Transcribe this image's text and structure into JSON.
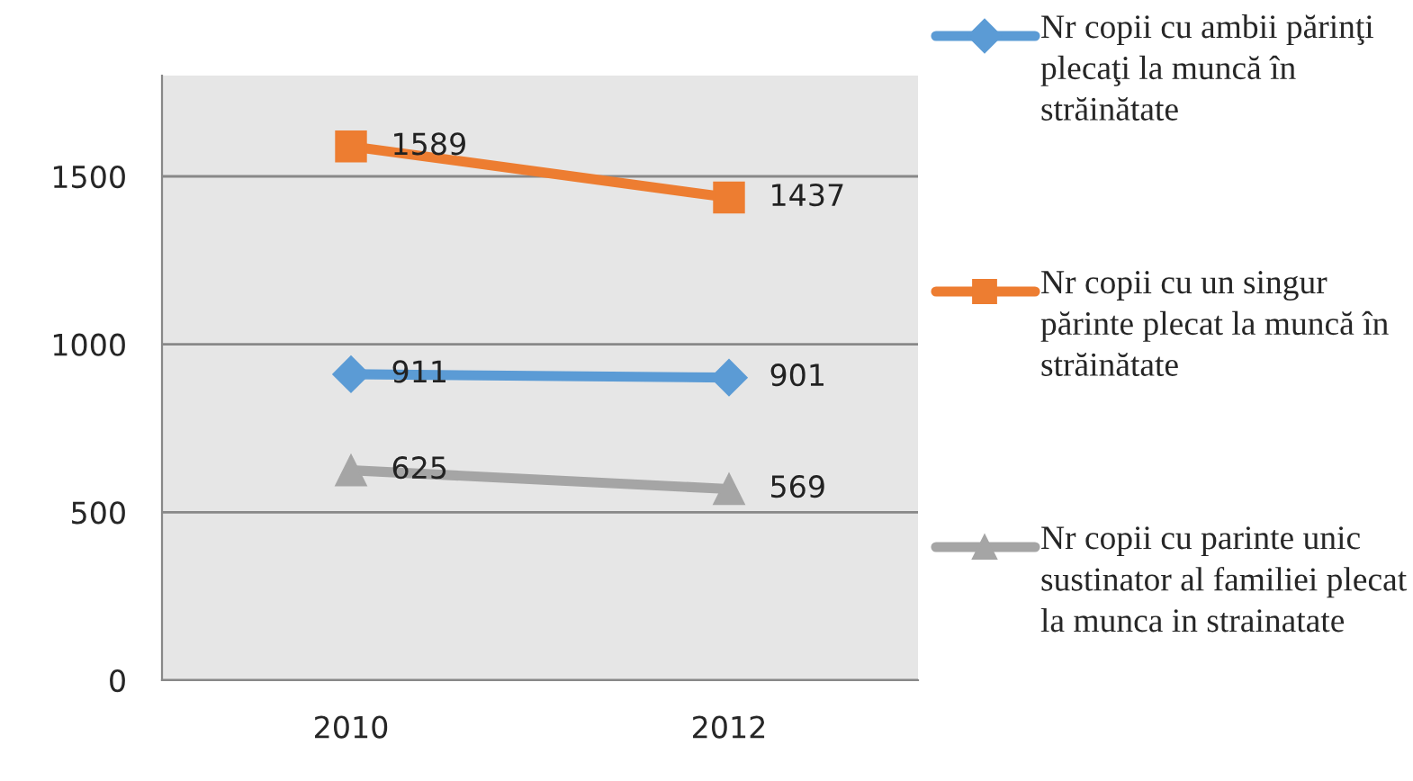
{
  "chart_data": {
    "type": "line",
    "categories": [
      "2010",
      "2012"
    ],
    "series": [
      {
        "name": "Nr copii cu ambii părinţi plecaţi la muncă în străinătate",
        "color": "#5b9bd5",
        "marker": "diamond",
        "values": [
          911,
          901
        ]
      },
      {
        "name": "Nr copii cu un singur părinte plecat la muncă în străinătate",
        "color": "#ed7d31",
        "marker": "square",
        "values": [
          1589,
          1437
        ]
      },
      {
        "name": "Nr copii cu parinte unic sustinator al familiei plecat la munca in strainatate",
        "color": "#a5a5a5",
        "marker": "triangle",
        "values": [
          625,
          569
        ]
      }
    ],
    "ylim": [
      0,
      1800
    ],
    "yticks": [
      0,
      500,
      1000,
      1500
    ],
    "grid": "y",
    "legend": "right",
    "data_labels": true
  }
}
